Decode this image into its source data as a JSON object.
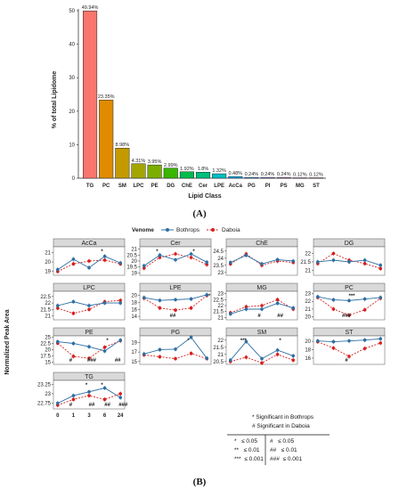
{
  "captions": {
    "a": "(A)",
    "b": "(B)"
  },
  "chart_data": [
    {
      "type": "bar",
      "ylabel": "% of total Lipidome",
      "xlabel": "Lipid Class",
      "ylim": [
        0,
        50
      ],
      "yticks": [
        0,
        10,
        20,
        30,
        40,
        50
      ],
      "categories": [
        "TG",
        "PC",
        "SM",
        "LPC",
        "PE",
        "DG",
        "ChE",
        "Cer",
        "LPE",
        "AcCa",
        "PG",
        "PI",
        "PS",
        "MG",
        "ST"
      ],
      "values": [
        49.94,
        23.35,
        8.98,
        4.31,
        3.95,
        2.99,
        1.92,
        1.8,
        1.32,
        0.48,
        0.24,
        0.24,
        0.24,
        0.12,
        0.12
      ],
      "data_labels": [
        "49.94%",
        "23.35%",
        "8.98%",
        "4.31%",
        "3.95%",
        "2.99%",
        "1.92%",
        "1.8%",
        "1.32%",
        "0.48%",
        "0.24%",
        "0.24%",
        "0.24%",
        "0.12%",
        "0.12%"
      ],
      "colors": [
        "#f8766d",
        "#e08b00",
        "#c49a00",
        "#a3a500",
        "#7cae00",
        "#39b600",
        "#00bb4e",
        "#00bf7d",
        "#00bfc4",
        "#00b0f6",
        "#35a2ff",
        "#9590ff",
        "#c77cff",
        "#e76bf3",
        "#ff62bc"
      ]
    },
    {
      "type": "line",
      "ylabel": "Normalized Peak Area",
      "legend": {
        "title": "Venome",
        "placement": "top"
      },
      "series_names": [
        "Bothrops",
        "Daboia"
      ],
      "colors": {
        "Bothrops": "#2e6fa3",
        "Daboia": "#d81e1e"
      },
      "x": [
        0,
        1,
        3,
        6,
        24
      ],
      "xticks": [
        "0",
        "1",
        "3",
        "6",
        "24"
      ],
      "panels": [
        {
          "name": "AcCa",
          "yticks": [
            19,
            20,
            21
          ],
          "ylim": [
            18.6,
            21.6
          ],
          "Bothrops": [
            19.2,
            20.3,
            19.4,
            20.6,
            19.9
          ],
          "Daboia": [
            19.0,
            19.8,
            20.1,
            20.2,
            19.8
          ],
          "annotations": [
            {
              "text": "*",
              "x": 6
            }
          ]
        },
        {
          "name": "Cer",
          "yticks": [
            19.0,
            19.5,
            20.0,
            20.5,
            21.0
          ],
          "ylim": [
            18.8,
            21.2
          ],
          "Bothrops": [
            19.6,
            20.5,
            20.1,
            20.6,
            19.9
          ],
          "Daboia": [
            19.4,
            20.3,
            20.6,
            20.3,
            19.7
          ],
          "annotations": [
            {
              "text": "*",
              "x": 1
            },
            {
              "text": "*",
              "x": 6
            }
          ]
        },
        {
          "name": "ChE",
          "yticks": [
            23.0,
            23.5,
            24.0,
            24.5
          ],
          "ylim": [
            22.8,
            24.8
          ],
          "Bothrops": [
            23.7,
            24.2,
            23.6,
            23.9,
            23.8
          ],
          "Daboia": [
            23.6,
            24.3,
            23.5,
            23.8,
            23.7
          ],
          "annotations": []
        },
        {
          "name": "DG",
          "yticks": [
            21.0,
            21.5,
            22.0
          ],
          "ylim": [
            20.7,
            22.4
          ],
          "Bothrops": [
            21.5,
            21.6,
            21.5,
            21.6,
            21.3
          ],
          "Daboia": [
            21.4,
            22.0,
            21.6,
            21.4,
            21.1
          ],
          "annotations": []
        },
        {
          "name": "LPC",
          "yticks": [
            21.0,
            21.5,
            22.0,
            22.5
          ],
          "ylim": [
            20.7,
            22.9
          ],
          "Bothrops": [
            21.8,
            22.1,
            21.8,
            22.0,
            22.0
          ],
          "Daboia": [
            21.6,
            21.2,
            21.5,
            22.1,
            22.2
          ],
          "annotations": []
        },
        {
          "name": "LPE",
          "yticks": [
            14,
            16,
            18,
            20
          ],
          "ylim": [
            13,
            21.2
          ],
          "Bothrops": [
            19.4,
            18.6,
            18.8,
            19.0,
            20.2
          ],
          "Daboia": [
            19.2,
            16.4,
            15.8,
            16.4,
            20.0
          ],
          "annotations": [
            {
              "text": "##",
              "x": 3
            },
            {
              "text": "*",
              "x": 24
            }
          ]
        },
        {
          "name": "MG",
          "yticks": [
            21.0,
            21.5,
            22.0,
            22.5,
            23.0
          ],
          "ylim": [
            20.8,
            23.2
          ],
          "Bothrops": [
            21.3,
            21.7,
            21.7,
            22.2,
            21.8
          ],
          "Daboia": [
            21.4,
            21.9,
            22.0,
            22.5,
            21.7
          ],
          "annotations": [
            {
              "text": "#",
              "x": 3
            },
            {
              "text": "##",
              "x": 6
            }
          ]
        },
        {
          "name": "PC",
          "yticks": [
            20,
            21,
            22,
            23
          ],
          "ylim": [
            19.6,
            23.3
          ],
          "Bothrops": [
            22.6,
            22.2,
            22.1,
            22.3,
            22.5
          ],
          "Daboia": [
            22.5,
            21.0,
            20.2,
            20.9,
            22.4
          ],
          "annotations": [
            {
              "text": "###",
              "x": 3
            },
            {
              "text": "***",
              "x": 3
            }
          ]
        },
        {
          "name": "PE",
          "yticks": [
            15.0,
            17.5,
            20.0,
            22.5,
            25.0
          ],
          "ylim": [
            14.2,
            25.5
          ],
          "Bothrops": [
            23.2,
            22.5,
            21.2,
            19.5,
            23.8
          ],
          "Daboia": [
            22.6,
            17.4,
            16.6,
            21.0,
            23.6
          ],
          "annotations": [
            {
              "text": "#",
              "x": 1
            },
            {
              "text": "###",
              "x": 3
            },
            {
              "text": "##",
              "x": 24
            },
            {
              "text": "*",
              "x": 6
            }
          ]
        },
        {
          "name": "PG",
          "yticks": [
            15,
            17,
            19
          ],
          "ylim": [
            14.4,
            20.4
          ],
          "Bothrops": [
            16.6,
            17.5,
            17.6,
            20.1,
            15.7
          ],
          "Daboia": [
            16.4,
            16.0,
            15.6,
            16.7,
            15.6
          ],
          "annotations": [
            {
              "text": "*",
              "x": 6
            }
          ]
        },
        {
          "name": "SM",
          "yticks": [
            20.5,
            21.0,
            21.5,
            22.0
          ],
          "ylim": [
            20.3,
            22.3
          ],
          "Bothrops": [
            20.6,
            21.9,
            20.7,
            21.3,
            20.9
          ],
          "Daboia": [
            20.5,
            20.8,
            20.4,
            21.0,
            20.6
          ],
          "annotations": [
            {
              "text": "***",
              "x": 1
            },
            {
              "text": "*",
              "x": 6
            }
          ]
        },
        {
          "name": "ST",
          "yticks": [
            16.0,
            18.0,
            20.0
          ],
          "ylim": [
            14.5,
            21.3
          ],
          "Bothrops": [
            20.1,
            19.9,
            20.1,
            20.3,
            20.6
          ],
          "Daboia": [
            19.9,
            18.4,
            16.4,
            18.3,
            19.6
          ],
          "annotations": [
            {
              "text": "#",
              "x": 3
            }
          ]
        },
        {
          "name": "TG",
          "yticks": [
            22.75,
            23.0,
            23.25
          ],
          "ylim": [
            22.6,
            23.35
          ],
          "Bothrops": [
            22.75,
            22.95,
            23.05,
            23.15,
            22.9
          ],
          "Daboia": [
            22.7,
            22.85,
            22.95,
            22.85,
            23.0
          ],
          "annotations": [
            {
              "text": "#",
              "x": 1
            },
            {
              "text": "##",
              "x": 3
            },
            {
              "text": "*",
              "x": 3
            },
            {
              "text": "##",
              "x": 6
            },
            {
              "text": "*",
              "x": 6
            },
            {
              "text": "###",
              "x": 24
            }
          ]
        }
      ],
      "significance_legend": {
        "lines": [
          "* Significant in Bothrops",
          "# Significant in Daboia"
        ],
        "star": [
          "*   ≤ 0.05",
          "**   ≤ 0.01",
          "***  ≤ 0.001"
        ],
        "hash": [
          "#   ≤ 0.05",
          "##   ≤ 0.01",
          "###  ≤ 0.001"
        ]
      }
    }
  ]
}
